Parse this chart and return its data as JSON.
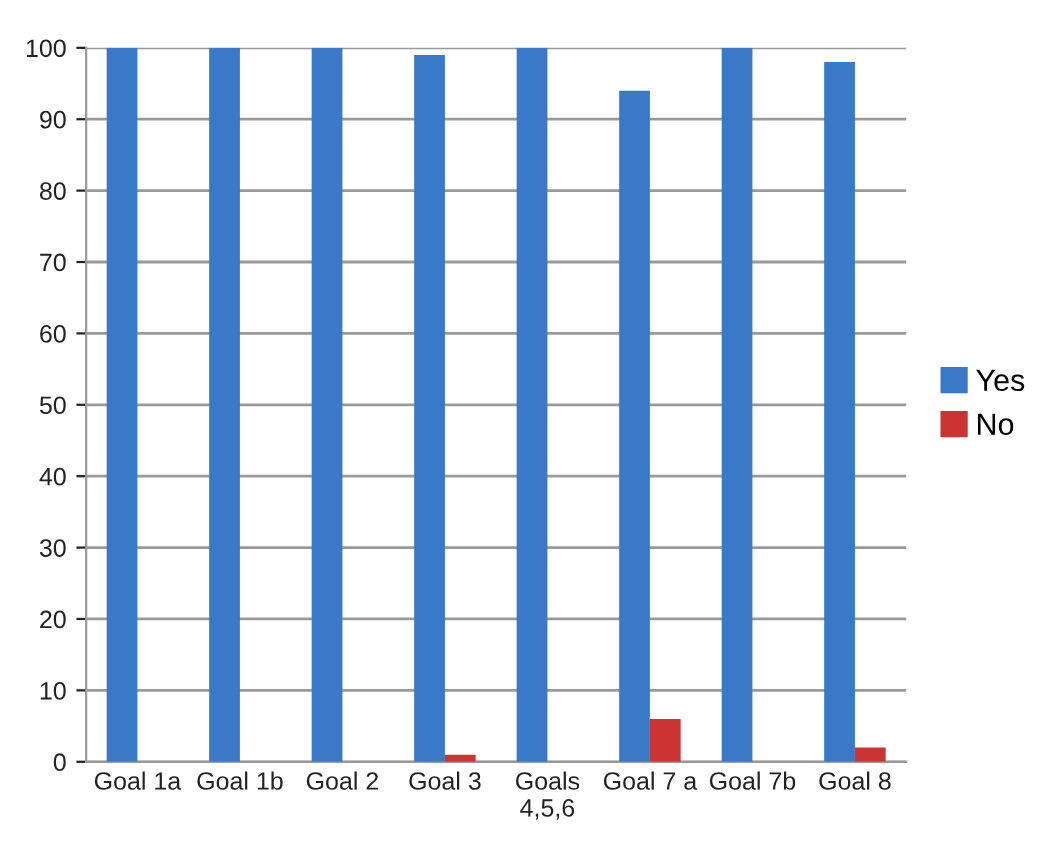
{
  "chart_data": {
    "type": "bar",
    "categories": [
      "Goal 1a",
      "Goal 1b",
      "Goal 2",
      "Goal 3",
      "Goals\n4,5,6",
      "Goal 7 a",
      "Goal 7b",
      "Goal 8"
    ],
    "series": [
      {
        "name": "Yes",
        "color": "#3a78c8",
        "values": [
          100,
          100,
          100,
          99,
          100,
          94,
          100,
          98
        ]
      },
      {
        "name": "No",
        "color": "#cc3333",
        "values": [
          0,
          0,
          0,
          1,
          0,
          6,
          0,
          2
        ]
      }
    ],
    "ylim": [
      0,
      100
    ],
    "yticks": [
      0,
      10,
      20,
      30,
      40,
      50,
      60,
      70,
      80,
      90,
      100
    ],
    "grid": "y",
    "legend": "right"
  }
}
